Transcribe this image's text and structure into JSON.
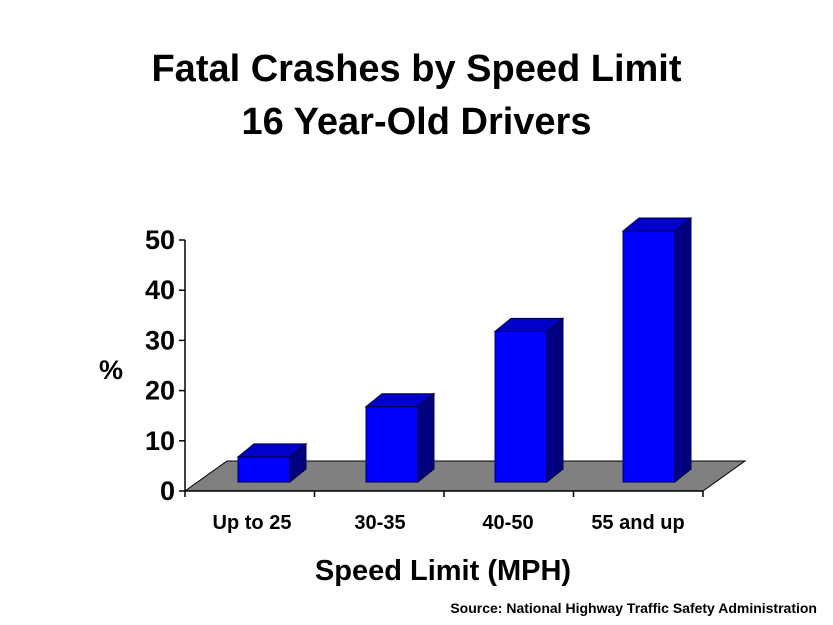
{
  "chart_data": {
    "type": "bar",
    "title": "Fatal Crashes by Speed Limit",
    "subtitle": "16 Year-Old Drivers",
    "xlabel": "Speed Limit (MPH)",
    "ylabel": "%",
    "categories": [
      "Up to 25",
      "30-35",
      "40-50",
      "55 and up"
    ],
    "values": [
      5,
      15,
      30,
      50
    ],
    "ylim": [
      0,
      50
    ],
    "yticks": [
      0,
      10,
      20,
      30,
      40,
      50
    ],
    "grid": false,
    "legend": "none",
    "bar_color": "#0000ff",
    "bar_side_color": "#000080",
    "bar_top_color": "#0000c8",
    "floor_color": "#808080"
  },
  "source": "Source: National Highway Traffic Safety Administration"
}
